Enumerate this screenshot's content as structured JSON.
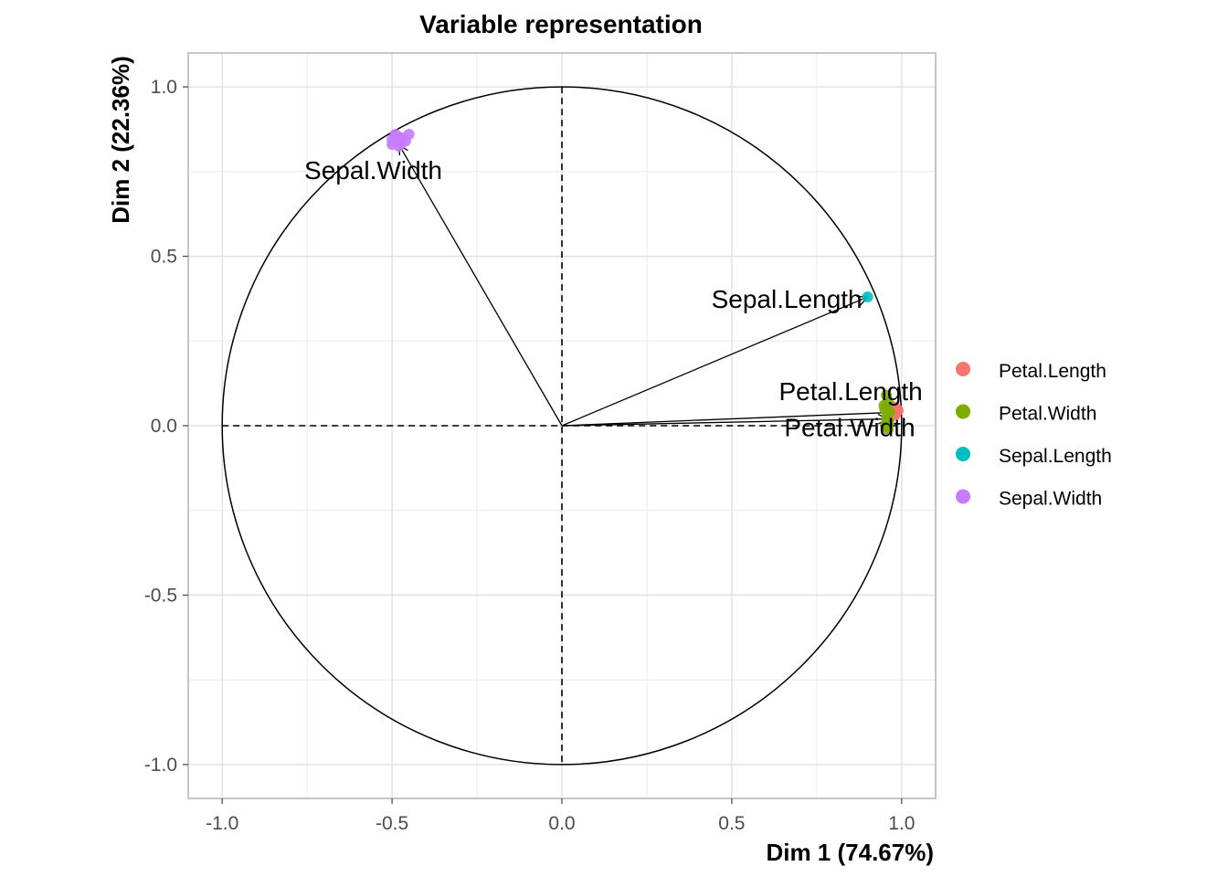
{
  "chart_data": {
    "type": "scatter",
    "title": "Variable representation",
    "xlabel": "Dim 1 (74.67%)",
    "ylabel": "Dim 2 (22.36%)",
    "xlim": [
      -1.1,
      1.1
    ],
    "ylim": [
      -1.1,
      1.1
    ],
    "x_ticks": [
      -1.0,
      -0.5,
      0.0,
      0.5,
      1.0
    ],
    "x_tick_labels": [
      "-1.0",
      "-0.5",
      "0.0",
      "0.5",
      "1.0"
    ],
    "y_ticks": [
      -1.0,
      -0.5,
      0.0,
      0.5,
      1.0
    ],
    "y_tick_labels": [
      "-1.0",
      "-0.5",
      "0.0",
      "0.5",
      "1.0"
    ],
    "grid": true,
    "correlation_circle": true,
    "legend_position": "right",
    "arrows": [
      {
        "label": "Sepal.Width",
        "x": -0.48,
        "y": 0.83
      },
      {
        "label": "Sepal.Length",
        "x": 0.9,
        "y": 0.38
      },
      {
        "label": "Petal.Length",
        "x": 0.99,
        "y": 0.04
      },
      {
        "label": "Petal.Width",
        "x": 0.96,
        "y": 0.02
      }
    ],
    "series": [
      {
        "name": "Petal.Length",
        "color": "#f8766d",
        "points": [
          [
            0.975,
            0.04
          ],
          [
            0.985,
            0.05
          ],
          [
            0.98,
            0.03
          ],
          [
            0.99,
            0.045
          ],
          [
            0.978,
            0.055
          ],
          [
            0.983,
            0.035
          ]
        ]
      },
      {
        "name": "Petal.Width",
        "color": "#7cae00",
        "points": [
          [
            0.955,
            0.09
          ],
          [
            0.96,
            0.07
          ],
          [
            0.95,
            0.05
          ],
          [
            0.958,
            0.03
          ],
          [
            0.962,
            0.01
          ],
          [
            0.953,
            0.0
          ],
          [
            0.96,
            -0.01
          ],
          [
            0.948,
            0.06
          ],
          [
            0.965,
            0.04
          ],
          [
            0.957,
            0.02
          ]
        ]
      },
      {
        "name": "Sepal.Length",
        "color": "#00bfc4",
        "points": [
          [
            0.9,
            0.38
          ]
        ]
      },
      {
        "name": "Sepal.Width",
        "color": "#c77cff",
        "points": [
          [
            -0.5,
            0.83
          ],
          [
            -0.48,
            0.84
          ],
          [
            -0.47,
            0.85
          ],
          [
            -0.49,
            0.86
          ],
          [
            -0.46,
            0.84
          ],
          [
            -0.45,
            0.86
          ],
          [
            -0.5,
            0.845
          ],
          [
            -0.48,
            0.825
          ],
          [
            -0.47,
            0.835
          ],
          [
            -0.485,
            0.855
          ]
        ]
      }
    ]
  }
}
